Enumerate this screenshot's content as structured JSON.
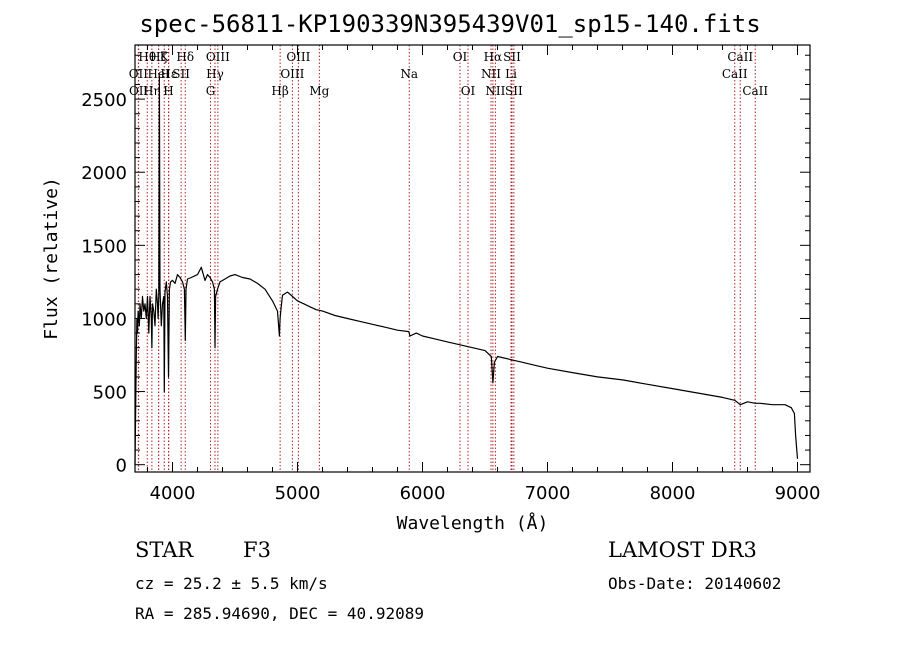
{
  "chart_data": {
    "type": "line",
    "title": "spec-56811-KP190339N395439V01_sp15-140.fits",
    "xlabel": "Wavelength (Å)",
    "ylabel": "Flux (relative)",
    "xlim": [
      3700,
      9100
    ],
    "ylim": [
      -50,
      2870
    ],
    "xticks": [
      4000,
      5000,
      6000,
      7000,
      8000,
      9000
    ],
    "yticks": [
      0,
      500,
      1000,
      1500,
      2000,
      2500
    ],
    "grid": false,
    "series": [
      {
        "name": "spectrum",
        "x": [
          3700,
          3705,
          3710,
          3715,
          3720,
          3725,
          3730,
          3735,
          3740,
          3750,
          3760,
          3770,
          3780,
          3790,
          3800,
          3810,
          3820,
          3830,
          3835,
          3840,
          3850,
          3860,
          3870,
          3880,
          3885,
          3890,
          3895,
          3900,
          3910,
          3920,
          3930,
          3934,
          3940,
          3950,
          3960,
          3968,
          3975,
          3985,
          4000,
          4020,
          4040,
          4060,
          4080,
          4095,
          4102,
          4108,
          4120,
          4150,
          4200,
          4230,
          4260,
          4280,
          4300,
          4320,
          4335,
          4340,
          4345,
          4360,
          4380,
          4420,
          4460,
          4500,
          4560,
          4620,
          4680,
          4740,
          4800,
          4840,
          4855,
          4861,
          4866,
          4880,
          4920,
          4960,
          5000,
          5050,
          5100,
          5150,
          5200,
          5300,
          5400,
          5500,
          5600,
          5700,
          5800,
          5890,
          5900,
          5950,
          6000,
          6100,
          6200,
          6300,
          6400,
          6500,
          6550,
          6563,
          6575,
          6600,
          6700,
          6800,
          6900,
          7000,
          7200,
          7400,
          7600,
          7800,
          8000,
          8200,
          8400,
          8498,
          8542,
          8600,
          8662,
          8700,
          8800,
          8900,
          8950,
          8975,
          8985,
          9000
        ],
        "y": [
          0,
          350,
          750,
          1000,
          900,
          1050,
          1000,
          950,
          1100,
          1000,
          1150,
          1050,
          1100,
          1000,
          1150,
          900,
          1150,
          1000,
          800,
          1100,
          1050,
          950,
          1200,
          1100,
          1000,
          1150,
          2650,
          1200,
          950,
          1100,
          1150,
          500,
          1180,
          1250,
          1150,
          600,
          1200,
          1250,
          1260,
          1240,
          1300,
          1280,
          1250,
          1200,
          850,
          1200,
          1270,
          1280,
          1300,
          1350,
          1260,
          1300,
          1280,
          1250,
          1200,
          800,
          1150,
          1200,
          1250,
          1270,
          1290,
          1300,
          1280,
          1270,
          1240,
          1200,
          1120,
          1050,
          880,
          1000,
          1050,
          1160,
          1180,
          1150,
          1120,
          1100,
          1080,
          1060,
          1050,
          1020,
          1000,
          980,
          960,
          940,
          920,
          910,
          880,
          900,
          880,
          860,
          840,
          820,
          800,
          780,
          740,
          560,
          700,
          740,
          720,
          700,
          680,
          660,
          630,
          600,
          580,
          550,
          520,
          490,
          460,
          440,
          410,
          430,
          420,
          420,
          410,
          410,
          390,
          350,
          200,
          40
        ]
      }
    ],
    "lines": [
      {
        "name": "OII",
        "wavelength": 3727,
        "row": 2
      },
      {
        "name": "OII",
        "wavelength": 3729,
        "row": 3
      },
      {
        "name": "Hθ",
        "wavelength": 3798,
        "row": 1
      },
      {
        "name": "Hη",
        "wavelength": 3835,
        "row": 3
      },
      {
        "name": "Hζ",
        "wavelength": 3889,
        "row": 1
      },
      {
        "name": "HeI",
        "wavelength": 3889,
        "row": 2
      },
      {
        "name": "K",
        "wavelength": 3934,
        "row": 1
      },
      {
        "name": "H",
        "wavelength": 3968,
        "row": 3
      },
      {
        "name": "Hε",
        "wavelength": 3970,
        "row": 2
      },
      {
        "name": "SII",
        "wavelength": 4069,
        "row": 2
      },
      {
        "name": "Hδ",
        "wavelength": 4102,
        "row": 1
      },
      {
        "name": "G",
        "wavelength": 4304,
        "row": 3
      },
      {
        "name": "Hγ",
        "wavelength": 4340,
        "row": 2
      },
      {
        "name": "OIII",
        "wavelength": 4363,
        "row": 1
      },
      {
        "name": "Hβ",
        "wavelength": 4861,
        "row": 3
      },
      {
        "name": "OIII",
        "wavelength": 4959,
        "row": 2
      },
      {
        "name": "OIII",
        "wavelength": 5007,
        "row": 1
      },
      {
        "name": "Mg",
        "wavelength": 5175,
        "row": 3
      },
      {
        "name": "Na",
        "wavelength": 5894,
        "row": 2
      },
      {
        "name": "OI",
        "wavelength": 6300,
        "row": 1
      },
      {
        "name": "OI",
        "wavelength": 6364,
        "row": 3
      },
      {
        "name": "NII",
        "wavelength": 6548,
        "row": 2
      },
      {
        "name": "Hα",
        "wavelength": 6563,
        "row": 1
      },
      {
        "name": "NII",
        "wavelength": 6583,
        "row": 3
      },
      {
        "name": "Li",
        "wavelength": 6708,
        "row": 2
      },
      {
        "name": "SII",
        "wavelength": 6716,
        "row": 1
      },
      {
        "name": "SII",
        "wavelength": 6731,
        "row": 3
      },
      {
        "name": "CaII",
        "wavelength": 8498,
        "row": 2
      },
      {
        "name": "CaII",
        "wavelength": 8542,
        "row": 1
      },
      {
        "name": "CaII",
        "wavelength": 8662,
        "row": 3
      }
    ]
  },
  "info": {
    "class_label": "STAR",
    "subclass": "F3",
    "survey": "LAMOST DR3",
    "cz": "cz = 25.2 ± 5.5 km/s",
    "obs_date": "Obs-Date: 20140602",
    "coords": "RA = 285.94690, DEC =  40.92089"
  },
  "colors": {
    "spectrum": "#000000",
    "line_marker": "#b22222",
    "axes": "#000000"
  }
}
